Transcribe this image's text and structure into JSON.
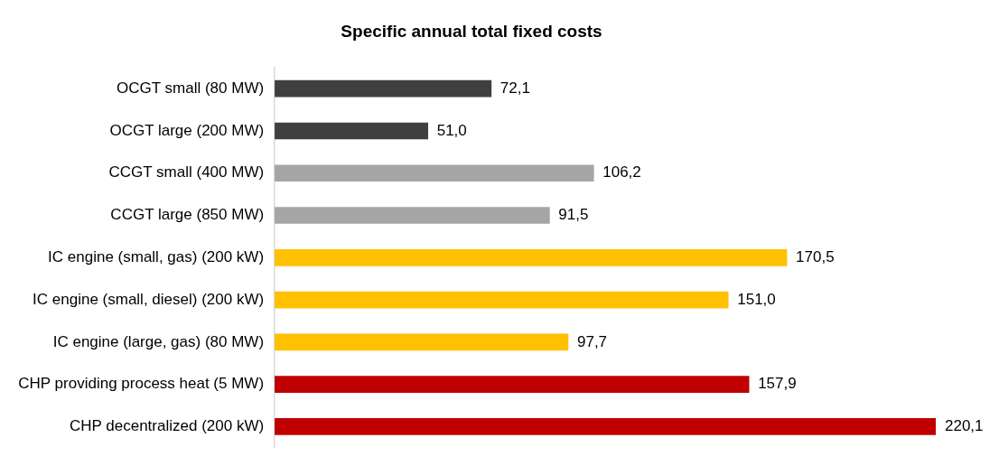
{
  "chart_data": {
    "type": "bar",
    "orientation": "horizontal",
    "title": "Specific annual total fixed costs",
    "categories": [
      "OCGT small (80 MW)",
      "OCGT large (200 MW)",
      "CCGT small (400 MW)",
      "CCGT large (850 MW)",
      "IC engine (small, gas) (200 kW)",
      "IC engine (small, diesel) (200 kW)",
      "IC engine (large, gas) (80 MW)",
      "CHP providing process heat (5 MW)",
      "CHP decentralized (200 kW)"
    ],
    "values": [
      72.1,
      51.0,
      106.2,
      91.5,
      170.5,
      151.0,
      97.7,
      157.9,
      220.1
    ],
    "value_labels": [
      "72,1",
      "51,0",
      "106,2",
      "91,5",
      "170,5",
      "151,0",
      "97,7",
      "157,9",
      "220,1"
    ],
    "colors": [
      "#3f3f3f",
      "#3f3f3f",
      "#a5a5a5",
      "#a5a5a5",
      "#ffc000",
      "#ffc000",
      "#ffc000",
      "#c00000",
      "#c00000"
    ],
    "grid": false,
    "legend": false,
    "tick_labels": "y"
  }
}
